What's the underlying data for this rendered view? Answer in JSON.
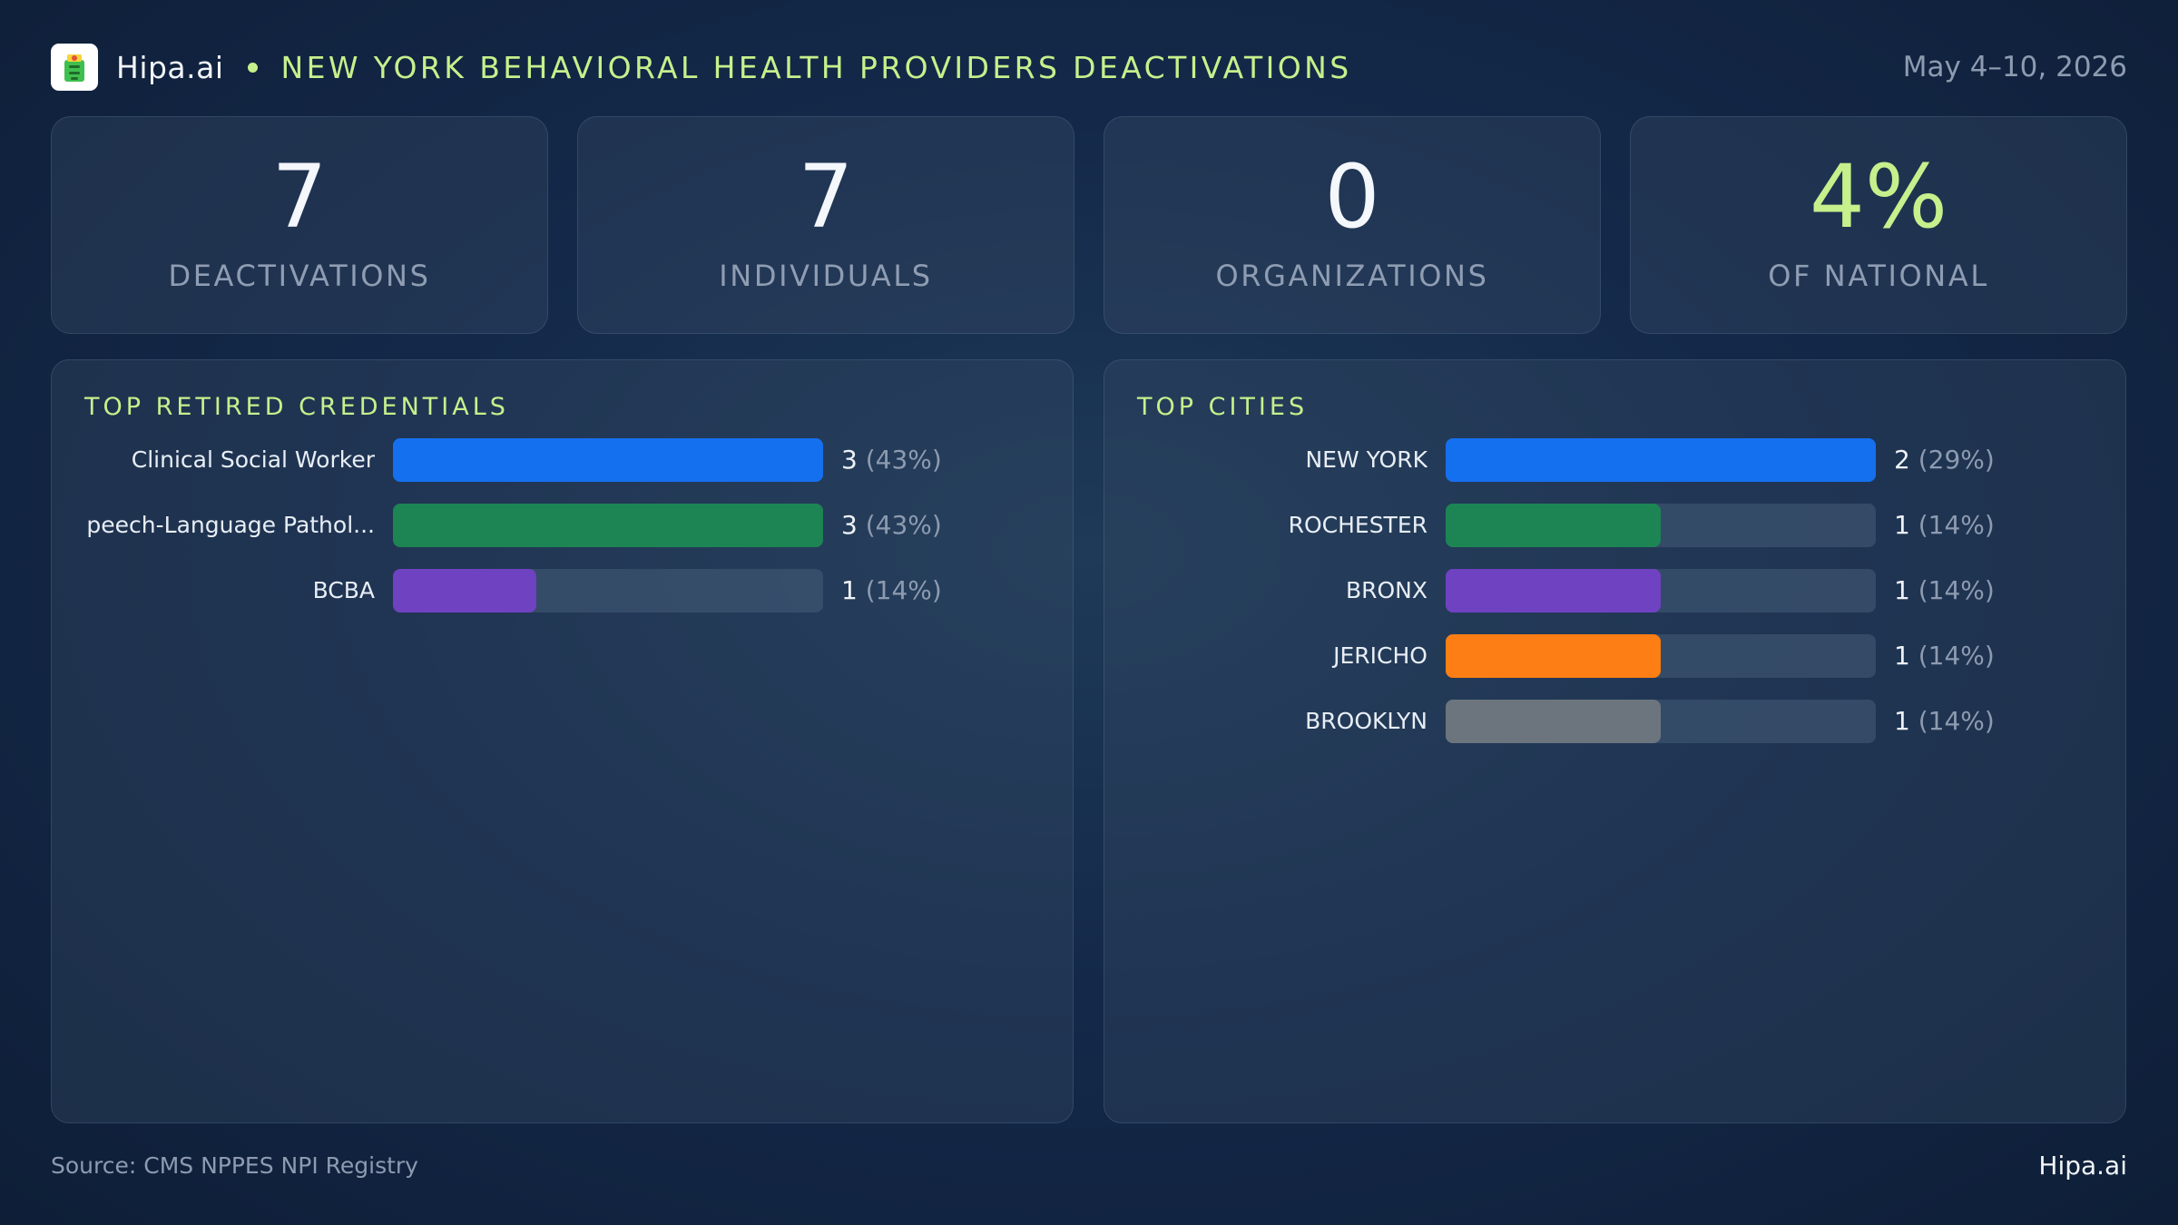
{
  "header": {
    "brand": "Hipa.ai",
    "title": "NEW YORK BEHAVIORAL HEALTH PROVIDERS DEACTIVATIONS",
    "date": "May 4–10, 2026"
  },
  "kpis": [
    {
      "value": "7",
      "label": "DEACTIVATIONS"
    },
    {
      "value": "7",
      "label": "INDIVIDUALS"
    },
    {
      "value": "0",
      "label": "ORGANIZATIONS"
    },
    {
      "value": "4%",
      "label": "OF NATIONAL"
    }
  ],
  "chart_data": [
    {
      "type": "bar",
      "title": "TOP RETIRED CREDENTIALS",
      "categories": [
        "Clinical Social Worker",
        "peech-Language Pathol...",
        "BCBA"
      ],
      "values": [
        3,
        3,
        1
      ],
      "percent_labels": [
        "(43%)",
        "(43%)",
        "(14%)"
      ],
      "colors": [
        "#1570ef",
        "#1c8553",
        "#6f42c1"
      ],
      "xlim": [
        0,
        3
      ]
    },
    {
      "type": "bar",
      "title": "TOP CITIES",
      "categories": [
        "NEW YORK",
        "ROCHESTER",
        "BRONX",
        "JERICHO",
        "BROOKLYN"
      ],
      "values": [
        2,
        1,
        1,
        1,
        1
      ],
      "percent_labels": [
        "(29%)",
        "(14%)",
        "(14%)",
        "(14%)",
        "(14%)"
      ],
      "colors": [
        "#1570ef",
        "#1c8553",
        "#6f42c1",
        "#fd7e14",
        "#6c757d"
      ],
      "xlim": [
        0,
        2
      ]
    }
  ],
  "footer": {
    "source": "Source: CMS NPPES NPI Registry",
    "brand": "Hipa.ai"
  }
}
